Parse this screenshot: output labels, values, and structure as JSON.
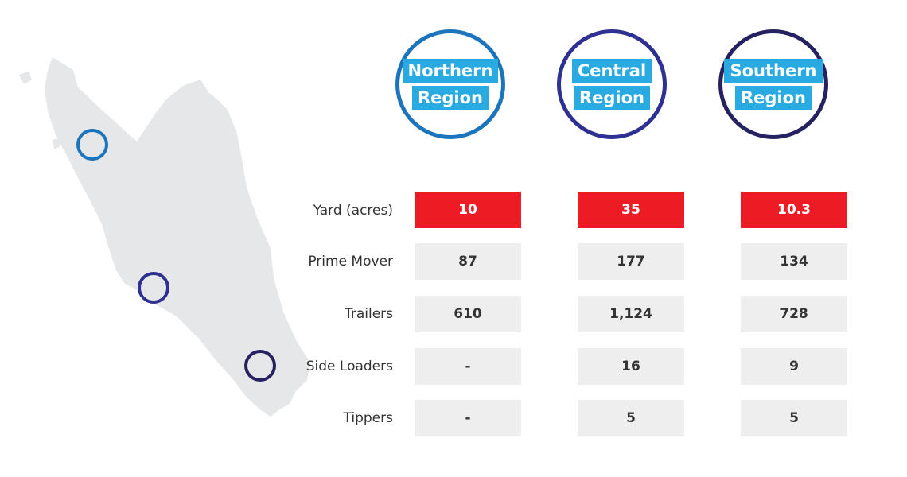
{
  "regions": [
    {
      "title_line1": "Northern",
      "title_line2": "Region",
      "ring_color": "#1c75bc"
    },
    {
      "title_line1": "Central",
      "title_line2": "Region",
      "ring_color": "#2e3192"
    },
    {
      "title_line1": "Southern",
      "title_line2": "Region",
      "ring_color": "#262262"
    }
  ],
  "rows": [
    {
      "label": "Yard (acres)",
      "values": [
        "10",
        "35",
        "10.3"
      ],
      "highlight": true
    },
    {
      "label": "Prime Mover",
      "values": [
        "87",
        "177",
        "134"
      ],
      "highlight": false
    },
    {
      "label": "Trailers",
      "values": [
        "610",
        "1,124",
        "728"
      ],
      "highlight": false
    },
    {
      "label": "Side Loaders",
      "values": [
        "-",
        "16",
        "9"
      ],
      "highlight": false
    },
    {
      "label": "Tippers",
      "values": [
        "-",
        "5",
        "5"
      ],
      "highlight": false
    }
  ],
  "colors": {
    "map_fill": "#e6e7e9",
    "highlight": "#ed1c24",
    "cell_bg": "#eeeeef",
    "title_bg": "#29abe2"
  }
}
